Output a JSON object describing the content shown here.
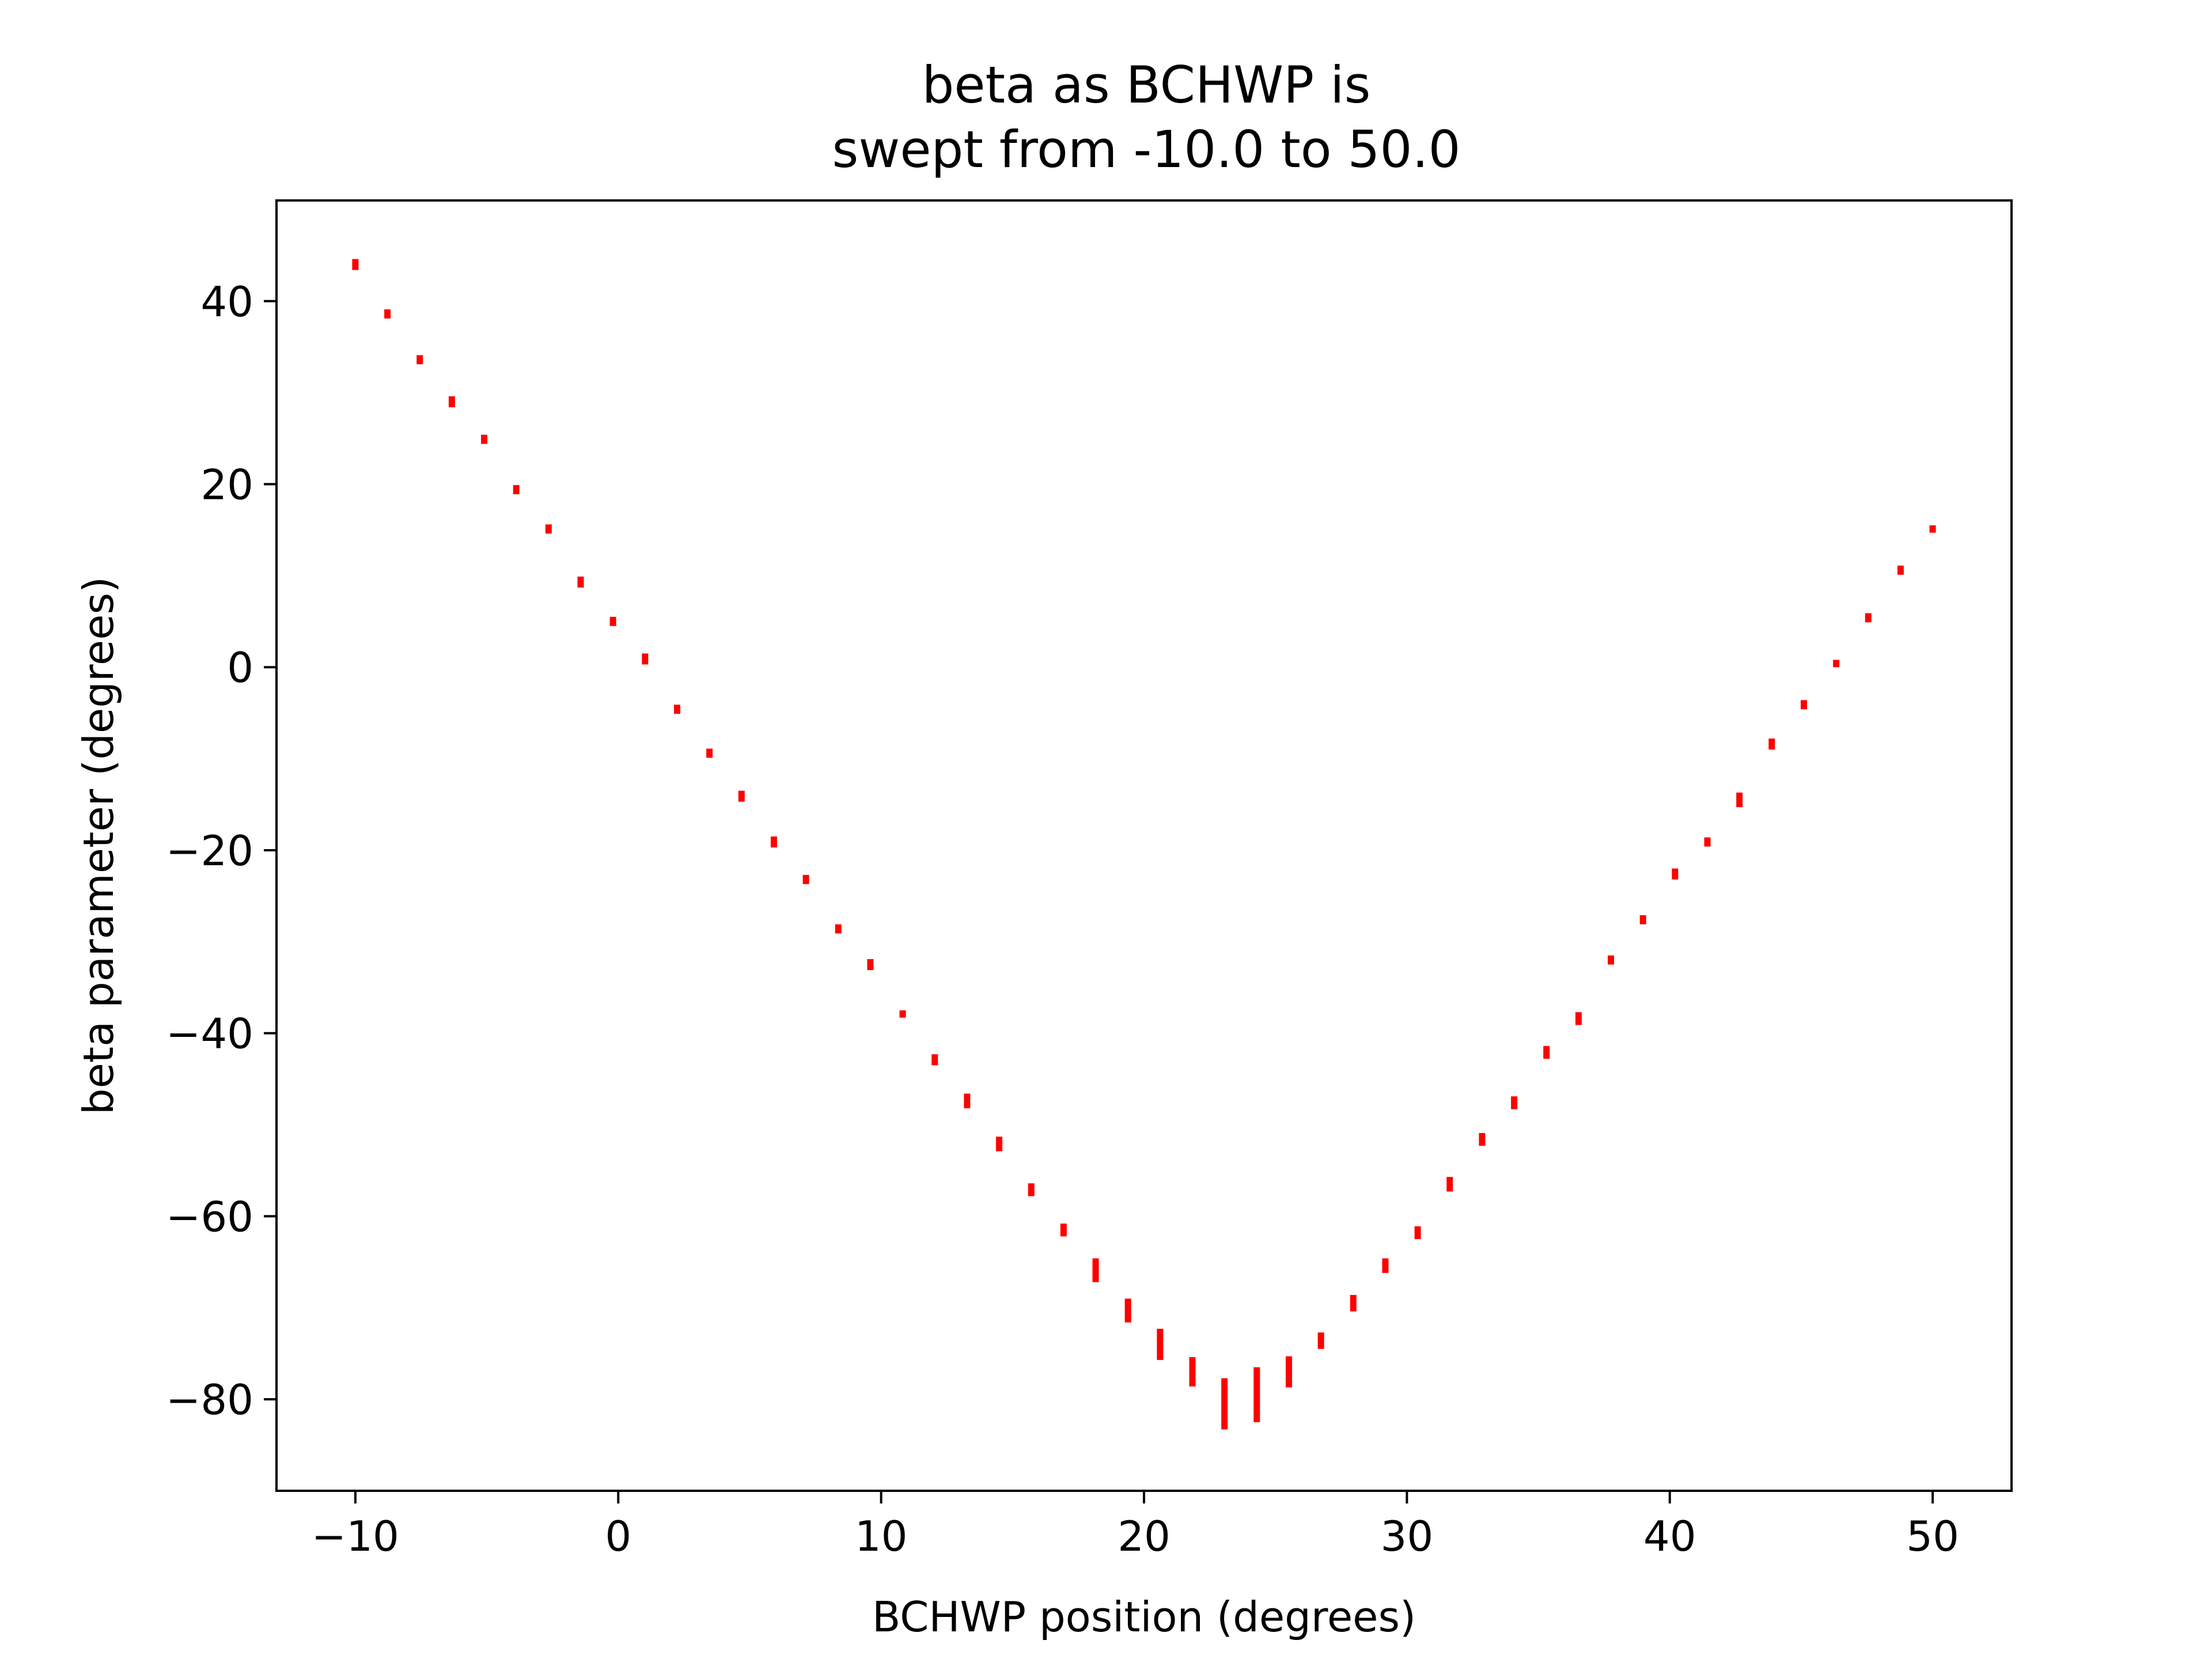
{
  "chart_data": {
    "type": "scatter",
    "title_lines": [
      "beta as BCHWP is",
      "swept from -10.0 to 50.0"
    ],
    "xlabel": "BCHWP position (degrees)",
    "ylabel": "beta parameter (degrees)",
    "xlim": [
      -13,
      53
    ],
    "ylim": [
      -90,
      51
    ],
    "xticks": [
      -10,
      0,
      10,
      20,
      30,
      40,
      50
    ],
    "yticks": [
      -80,
      -60,
      -40,
      -20,
      0,
      20,
      40
    ],
    "grid": false,
    "legend": "none",
    "marker": "vertical error bars",
    "color": "#ff0000",
    "points": [
      {
        "x": -10.0,
        "y": 44.0,
        "err": 0.6
      },
      {
        "x": -8.78,
        "y": 38.6,
        "err": 0.5
      },
      {
        "x": -7.55,
        "y": 33.6,
        "err": 0.5
      },
      {
        "x": -6.33,
        "y": 29.0,
        "err": 0.6
      },
      {
        "x": -5.1,
        "y": 24.9,
        "err": 0.5
      },
      {
        "x": -3.88,
        "y": 19.4,
        "err": 0.5
      },
      {
        "x": -2.65,
        "y": 15.1,
        "err": 0.5
      },
      {
        "x": -1.43,
        "y": 9.3,
        "err": 0.6
      },
      {
        "x": -0.2,
        "y": 5.0,
        "err": 0.5
      },
      {
        "x": 1.02,
        "y": 0.9,
        "err": 0.6
      },
      {
        "x": 2.24,
        "y": -4.6,
        "err": 0.5
      },
      {
        "x": 3.47,
        "y": -9.4,
        "err": 0.5
      },
      {
        "x": 4.69,
        "y": -14.1,
        "err": 0.6
      },
      {
        "x": 5.92,
        "y": -19.1,
        "err": 0.6
      },
      {
        "x": 7.14,
        "y": -23.2,
        "err": 0.5
      },
      {
        "x": 8.37,
        "y": -28.6,
        "err": 0.5
      },
      {
        "x": 9.59,
        "y": -32.5,
        "err": 0.6
      },
      {
        "x": 10.82,
        "y": -37.9,
        "err": 0.4
      },
      {
        "x": 12.04,
        "y": -42.9,
        "err": 0.6
      },
      {
        "x": 13.27,
        "y": -47.4,
        "err": 0.8
      },
      {
        "x": 14.49,
        "y": -52.1,
        "err": 0.8
      },
      {
        "x": 15.71,
        "y": -57.1,
        "err": 0.7
      },
      {
        "x": 16.94,
        "y": -61.5,
        "err": 0.7
      },
      {
        "x": 18.16,
        "y": -65.9,
        "err": 1.3
      },
      {
        "x": 19.39,
        "y": -70.3,
        "err": 1.3
      },
      {
        "x": 20.61,
        "y": -74.0,
        "err": 1.7
      },
      {
        "x": 21.84,
        "y": -77.0,
        "err": 1.6
      },
      {
        "x": 23.06,
        "y": -80.5,
        "err": 2.8
      },
      {
        "x": 24.29,
        "y": -79.5,
        "err": 3.0
      },
      {
        "x": 25.51,
        "y": -77.0,
        "err": 1.7
      },
      {
        "x": 26.73,
        "y": -73.6,
        "err": 0.9
      },
      {
        "x": 27.96,
        "y": -69.5,
        "err": 0.9
      },
      {
        "x": 29.18,
        "y": -65.4,
        "err": 0.8
      },
      {
        "x": 30.41,
        "y": -61.8,
        "err": 0.7
      },
      {
        "x": 31.63,
        "y": -56.5,
        "err": 0.8
      },
      {
        "x": 32.86,
        "y": -51.6,
        "err": 0.7
      },
      {
        "x": 34.08,
        "y": -47.6,
        "err": 0.7
      },
      {
        "x": 35.31,
        "y": -42.1,
        "err": 0.7
      },
      {
        "x": 36.53,
        "y": -38.4,
        "err": 0.7
      },
      {
        "x": 37.76,
        "y": -32.0,
        "err": 0.5
      },
      {
        "x": 38.98,
        "y": -27.6,
        "err": 0.5
      },
      {
        "x": 40.2,
        "y": -22.6,
        "err": 0.6
      },
      {
        "x": 41.43,
        "y": -19.1,
        "err": 0.5
      },
      {
        "x": 42.65,
        "y": -14.5,
        "err": 0.8
      },
      {
        "x": 43.88,
        "y": -8.4,
        "err": 0.6
      },
      {
        "x": 45.1,
        "y": -4.1,
        "err": 0.5
      },
      {
        "x": 46.33,
        "y": 0.4,
        "err": 0.4
      },
      {
        "x": 47.55,
        "y": 5.4,
        "err": 0.5
      },
      {
        "x": 48.78,
        "y": 10.6,
        "err": 0.5
      },
      {
        "x": 50.0,
        "y": 15.1,
        "err": 0.4
      }
    ]
  }
}
